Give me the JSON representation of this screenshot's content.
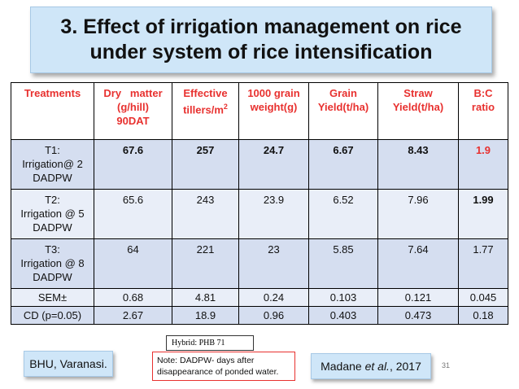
{
  "title": {
    "line1": "3. Effect of irrigation management on rice",
    "line2": "under system of rice intensification"
  },
  "table": {
    "headers": {
      "treatments": "Treatments",
      "dry_matter_1": "Dry   matter",
      "dry_matter_2": "(g/hill)",
      "dry_matter_3": "90DAT",
      "tillers_1": "Effective",
      "tillers_2": "tillers/m",
      "tillers_sup": "2",
      "weight_1": "1000 grain",
      "weight_2": "weight(g)",
      "grain_1": "Grain",
      "grain_2": "Yield(t/ha)",
      "straw_1": "Straw",
      "straw_2": "Yield(t/ha)",
      "bc_1": "B:C",
      "bc_2": "ratio"
    },
    "rows": [
      {
        "t_line1": "T1:",
        "t_line2": "Irrigation@ 2",
        "t_line3": "DADPW",
        "dry": "67.6",
        "tillers": "257",
        "weight": "24.7",
        "grain": "6.67",
        "straw": "8.43",
        "bc": "1.9"
      },
      {
        "t_line1": "T2:",
        "t_line2": "Irrigation @ 5",
        "t_line3": "DADPW",
        "dry": "65.6",
        "tillers": "243",
        "weight": "23.9",
        "grain": "6.52",
        "straw": "7.96",
        "bc": "1.99"
      },
      {
        "t_line1": "T3:",
        "t_line2": "Irrigation @ 8",
        "t_line3": "DADPW",
        "dry": "64",
        "tillers": "221",
        "weight": "23",
        "grain": "5.85",
        "straw": "7.64",
        "bc": "1.77"
      }
    ],
    "sem": {
      "label": "SEM±",
      "dry": "0.68",
      "tillers": "4.81",
      "weight": "0.24",
      "grain": "0.103",
      "straw": "0.121",
      "bc": "0.045"
    },
    "cd": {
      "label": "CD (p=0.05)",
      "dry": "2.67",
      "tillers": "18.9",
      "weight": "0.96",
      "grain": "0.403",
      "straw": "0.473",
      "bc": "0.18"
    }
  },
  "hybrid": "Hybrid: PHB 71",
  "location": "BHU, Varanasi.",
  "note": {
    "line1": "Note: DADPW- days after",
    "line2": "disappearance of ponded water."
  },
  "citation": {
    "author": "Madane ",
    "etal": "et al.",
    "year": ", 2017"
  },
  "page_number": "31",
  "colors": {
    "title_bg": "#cfe6f8",
    "header_text": "#e8312f",
    "row_dark": "#d5def0",
    "row_light": "#e9eef8",
    "highlight": "#e8312f"
  }
}
